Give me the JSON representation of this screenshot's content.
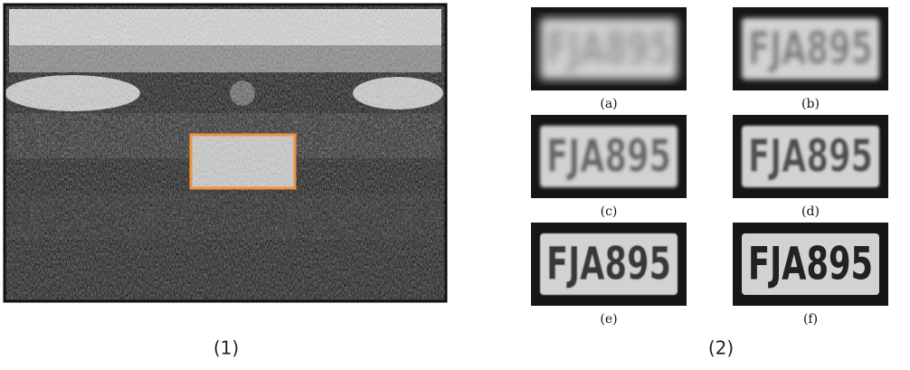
{
  "figure": {
    "panel_labels": [
      "(1)",
      "(2)"
    ],
    "subfigures": [
      {
        "label": "(a)"
      },
      {
        "label": "(b)"
      },
      {
        "label": "(c)"
      },
      {
        "label": "(d)"
      },
      {
        "label": "(e)"
      },
      {
        "label": "(f)"
      }
    ],
    "plate_text": "FJA895"
  }
}
